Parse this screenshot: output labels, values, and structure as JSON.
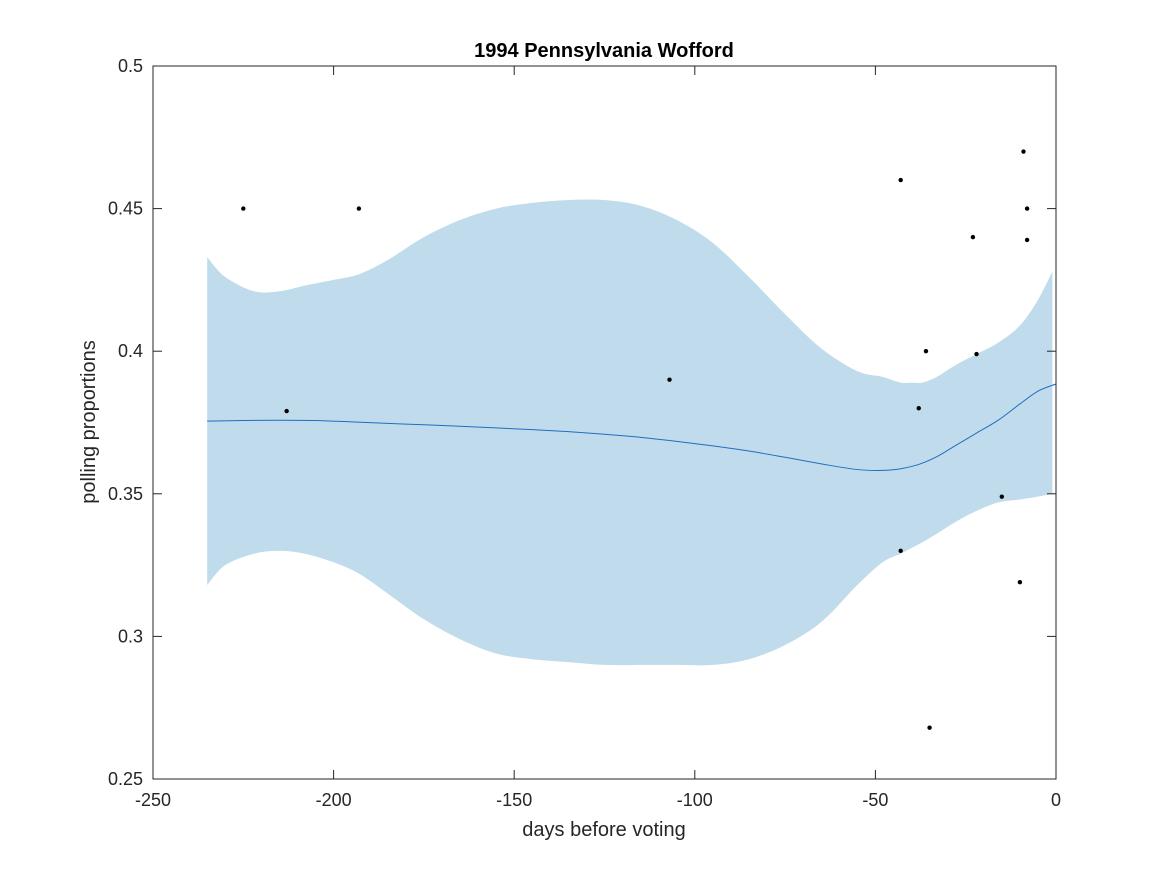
{
  "chart_data": {
    "type": "line",
    "title": "1994 Pennsylvania Wofford",
    "xlabel": "days before voting",
    "ylabel": "polling proportions",
    "xlim": [
      -250,
      0
    ],
    "ylim": [
      0.25,
      0.5
    ],
    "xticks": [
      -250,
      -200,
      -150,
      -100,
      -50,
      0
    ],
    "xtick_labels": [
      "-250",
      "-200",
      "-150",
      "-100",
      "-50",
      "0"
    ],
    "yticks": [
      0.25,
      0.3,
      0.35,
      0.4,
      0.45,
      0.5
    ],
    "ytick_labels": [
      "0.25",
      "0.3",
      "0.35",
      "0.4",
      "0.45",
      "0.5"
    ],
    "grid": false,
    "colors": {
      "band": "#c0dcec",
      "trend": "#1f6fc0",
      "points": "#000000",
      "axis": "#262626"
    },
    "band": {
      "x": [
        -235,
        -230,
        -222,
        -215,
        -208,
        -200,
        -193,
        -185,
        -175,
        -165,
        -155,
        -145,
        -135,
        -125,
        -115,
        -105,
        -95,
        -85,
        -75,
        -65,
        -55,
        -48,
        -43,
        -40,
        -37,
        -33,
        -28,
        -22,
        -16,
        -10,
        -5,
        -1
      ],
      "upper": [
        0.433,
        0.426,
        0.421,
        0.421,
        0.423,
        0.425,
        0.427,
        0.432,
        0.44,
        0.446,
        0.45,
        0.452,
        0.453,
        0.453,
        0.451,
        0.446,
        0.438,
        0.426,
        0.413,
        0.401,
        0.393,
        0.391,
        0.389,
        0.389,
        0.389,
        0.391,
        0.395,
        0.399,
        0.403,
        0.409,
        0.418,
        0.428
      ],
      "lower": [
        0.318,
        0.325,
        0.329,
        0.33,
        0.329,
        0.326,
        0.322,
        0.315,
        0.306,
        0.299,
        0.294,
        0.292,
        0.291,
        0.29,
        0.29,
        0.29,
        0.29,
        0.292,
        0.297,
        0.305,
        0.318,
        0.326,
        0.329,
        0.331,
        0.333,
        0.336,
        0.34,
        0.344,
        0.347,
        0.348,
        0.349,
        0.35
      ]
    },
    "series": [
      {
        "x": [
          -235,
          -225,
          -215,
          -205,
          -195,
          -185,
          -175,
          -165,
          -155,
          -145,
          -135,
          -125,
          -115,
          -105,
          -95,
          -85,
          -75,
          -65,
          -55,
          -48,
          -43,
          -38,
          -33,
          -28,
          -22,
          -16,
          -10,
          -5,
          0
        ],
        "values": [
          0.3755,
          0.3757,
          0.3758,
          0.3757,
          0.3752,
          0.3747,
          0.3742,
          0.3737,
          0.3731,
          0.3725,
          0.3718,
          0.3709,
          0.3698,
          0.3684,
          0.3668,
          0.365,
          0.3628,
          0.3605,
          0.3585,
          0.3582,
          0.3588,
          0.3603,
          0.363,
          0.3668,
          0.3713,
          0.3758,
          0.3815,
          0.386,
          0.3885
        ]
      }
    ],
    "points": [
      {
        "x": -225,
        "y": 0.45
      },
      {
        "x": -213,
        "y": 0.379
      },
      {
        "x": -193,
        "y": 0.45
      },
      {
        "x": -107,
        "y": 0.39
      },
      {
        "x": -43,
        "y": 0.46
      },
      {
        "x": -43,
        "y": 0.33
      },
      {
        "x": -38,
        "y": 0.38
      },
      {
        "x": -36,
        "y": 0.4
      },
      {
        "x": -35,
        "y": 0.268
      },
      {
        "x": -23,
        "y": 0.44
      },
      {
        "x": -22,
        "y": 0.399
      },
      {
        "x": -15,
        "y": 0.349
      },
      {
        "x": -10,
        "y": 0.319
      },
      {
        "x": -9,
        "y": 0.47
      },
      {
        "x": -8,
        "y": 0.45
      },
      {
        "x": -8,
        "y": 0.439
      }
    ]
  }
}
